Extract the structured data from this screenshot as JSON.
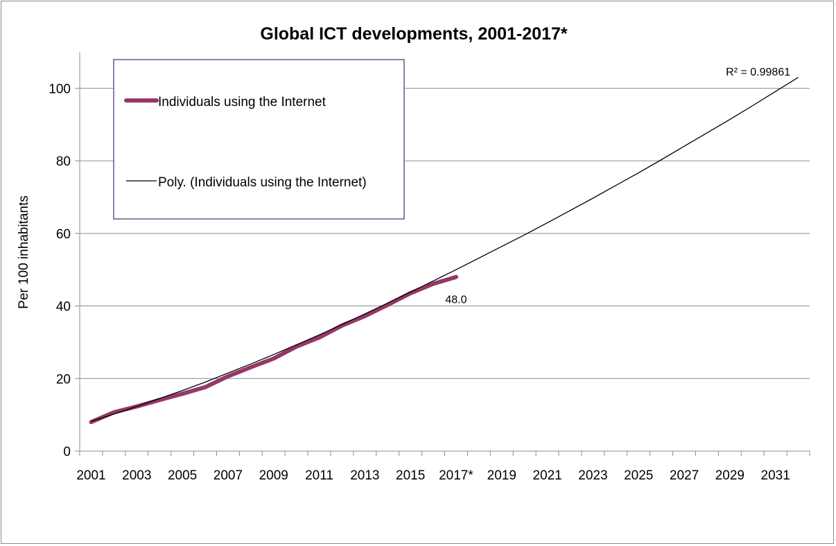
{
  "chart_data": {
    "type": "line",
    "title": "Global ICT developments, 2001-2017*",
    "xlabel": "",
    "ylabel": "Per 100 inhabitants",
    "ylim": [
      0,
      110
    ],
    "yticks": [
      0,
      20,
      40,
      60,
      80,
      100
    ],
    "x_categories": [
      "2001",
      "2002",
      "2003",
      "2004",
      "2005",
      "2006",
      "2007",
      "2008",
      "2009",
      "2010",
      "2011",
      "2012",
      "2013",
      "2014",
      "2015",
      "2016",
      "2017*",
      "2018",
      "2019",
      "2020",
      "2021",
      "2022",
      "2023",
      "2024",
      "2025",
      "2026",
      "2027",
      "2028",
      "2029",
      "2030",
      "2031",
      "2032"
    ],
    "x_tick_labels": [
      "2001",
      "2003",
      "2005",
      "2007",
      "2009",
      "2011",
      "2013",
      "2015",
      "2017*",
      "2019",
      "2021",
      "2023",
      "2025",
      "2027",
      "2029",
      "2031"
    ],
    "grid": true,
    "legend_position": "top-left",
    "series": [
      {
        "name": "Individuals using the Internet",
        "color": "#953867",
        "values": [
          8.0,
          10.7,
          12.3,
          14.1,
          15.8,
          17.6,
          20.6,
          23.1,
          25.5,
          28.8,
          31.3,
          34.6,
          37.2,
          40.3,
          43.5,
          46.1,
          48.0
        ]
      },
      {
        "name": "Poly. (Individuals using the Internet)",
        "color": "#000000",
        "trendline": "polynomial",
        "values": [
          8.2,
          10.2,
          12.3,
          14.5,
          16.7,
          19.0,
          21.5,
          24.0,
          26.6,
          29.3,
          32.0,
          34.9,
          37.8,
          40.8,
          43.8,
          46.9,
          50.0,
          53.2,
          56.4,
          59.6,
          62.9,
          66.3,
          69.7,
          73.2,
          76.7,
          80.3,
          84.0,
          87.7,
          91.4,
          95.2,
          99.1,
          103.0
        ]
      }
    ],
    "annotations": [
      {
        "text": "48.0",
        "x": "2017*",
        "y": 48.0
      },
      {
        "text": "R² = 0.99861",
        "x": "2031",
        "y": 101.0
      }
    ]
  }
}
